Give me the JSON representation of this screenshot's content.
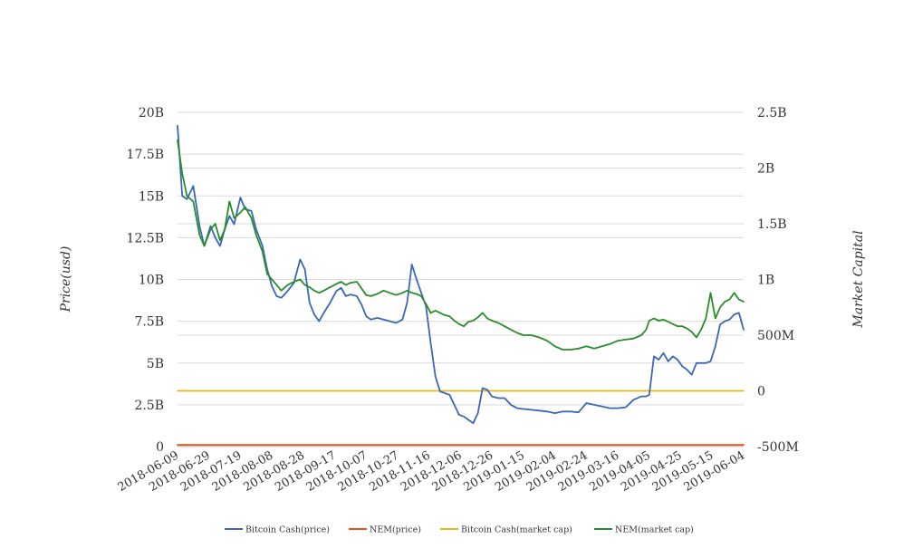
{
  "chart_data": {
    "type": "line",
    "title": "",
    "ylabel_left": "Price(usd)",
    "ylabel_right": "Market Capital",
    "ylim_left": [
      0,
      20000000000
    ],
    "ylim_right": [
      -500000000,
      2500000000
    ],
    "yticks_left": [
      "0",
      "2.5B",
      "5B",
      "7.5B",
      "10B",
      "12.5B",
      "15B",
      "17.5B",
      "20B"
    ],
    "yticks_right": [
      "-500M",
      "0",
      "500M",
      "1B",
      "1.5B",
      "2B",
      "2.5B"
    ],
    "x_range": [
      "2018-06-09",
      "2019-06-04"
    ],
    "xticks": [
      "2018-06-09",
      "2018-06-29",
      "2018-07-19",
      "2018-08-08",
      "2018-08-28",
      "2018-09-17",
      "2018-10-07",
      "2018-10-27",
      "2018-11-16",
      "2018-12-06",
      "2018-12-26",
      "2019-01-15",
      "2019-02-04",
      "2019-02-24",
      "2019-03-16",
      "2019-04-05",
      "2019-04-25",
      "2019-05-15",
      "2019-06-04"
    ],
    "grid": true,
    "legend_position": "bottom",
    "series": [
      {
        "name": "Bitcoin Cash(price)",
        "axis": "left",
        "color": "#3a67b8",
        "x": [
          "2018-06-09",
          "2018-06-12",
          "2018-06-15",
          "2018-06-19",
          "2018-06-23",
          "2018-06-26",
          "2018-06-30",
          "2018-07-03",
          "2018-07-06",
          "2018-07-09",
          "2018-07-12",
          "2018-07-15",
          "2018-07-19",
          "2018-07-22",
          "2018-07-26",
          "2018-07-29",
          "2018-08-02",
          "2018-08-05",
          "2018-08-08",
          "2018-08-11",
          "2018-08-14",
          "2018-08-18",
          "2018-08-22",
          "2018-08-26",
          "2018-08-29",
          "2018-09-01",
          "2018-09-04",
          "2018-09-07",
          "2018-09-10",
          "2018-09-14",
          "2018-09-18",
          "2018-09-21",
          "2018-09-24",
          "2018-09-27",
          "2018-10-01",
          "2018-10-04",
          "2018-10-07",
          "2018-10-10",
          "2018-10-14",
          "2018-10-18",
          "2018-10-22",
          "2018-10-26",
          "2018-10-30",
          "2018-11-02",
          "2018-11-05",
          "2018-11-08",
          "2018-11-11",
          "2018-11-14",
          "2018-11-17",
          "2018-11-20",
          "2018-11-23",
          "2018-11-26",
          "2018-11-29",
          "2018-12-02",
          "2018-12-05",
          "2018-12-08",
          "2018-12-11",
          "2018-12-14",
          "2018-12-17",
          "2018-12-20",
          "2018-12-23",
          "2018-12-26",
          "2018-12-30",
          "2019-01-03",
          "2019-01-07",
          "2019-01-11",
          "2019-01-15",
          "2019-01-20",
          "2019-01-25",
          "2019-01-30",
          "2019-02-04",
          "2019-02-09",
          "2019-02-14",
          "2019-02-19",
          "2019-02-24",
          "2019-03-01",
          "2019-03-06",
          "2019-03-11",
          "2019-03-16",
          "2019-03-21",
          "2019-03-26",
          "2019-03-31",
          "2019-04-03",
          "2019-04-05",
          "2019-04-08",
          "2019-04-11",
          "2019-04-14",
          "2019-04-17",
          "2019-04-20",
          "2019-04-23",
          "2019-04-26",
          "2019-04-29",
          "2019-05-02",
          "2019-05-05",
          "2019-05-08",
          "2019-05-11",
          "2019-05-14",
          "2019-05-17",
          "2019-05-20",
          "2019-05-23",
          "2019-05-26",
          "2019-05-29",
          "2019-06-01",
          "2019-06-04"
        ],
        "values": [
          19.2,
          15.0,
          14.8,
          15.6,
          13.2,
          12.0,
          13.2,
          12.5,
          12.0,
          13.0,
          13.8,
          13.3,
          14.9,
          14.2,
          14.1,
          13.0,
          12.0,
          10.6,
          9.6,
          9.0,
          8.9,
          9.3,
          9.8,
          11.2,
          10.6,
          8.6,
          7.9,
          7.5,
          8.0,
          8.6,
          9.3,
          9.5,
          9.0,
          9.1,
          9.0,
          8.5,
          7.8,
          7.6,
          7.7,
          7.6,
          7.5,
          7.4,
          7.6,
          8.6,
          10.9,
          10.0,
          9.2,
          8.4,
          6.2,
          4.2,
          3.3,
          3.2,
          3.1,
          2.5,
          1.9,
          1.8,
          1.6,
          1.4,
          2.0,
          3.5,
          3.4,
          3.0,
          2.9,
          2.9,
          2.5,
          2.3,
          2.25,
          2.2,
          2.15,
          2.1,
          2.0,
          2.1,
          2.1,
          2.05,
          2.6,
          2.5,
          2.4,
          2.3,
          2.3,
          2.35,
          2.8,
          3.0,
          3.0,
          3.1,
          5.4,
          5.2,
          5.6,
          5.1,
          5.4,
          5.2,
          4.8,
          4.6,
          4.3,
          5.0,
          5.0,
          5.0,
          5.1,
          6.0,
          7.3,
          7.5,
          7.6,
          7.9,
          8.0,
          7.0
        ]
      },
      {
        "name": "NEM(price)",
        "axis": "left",
        "color": "#d9541e",
        "x": [
          "2018-06-09",
          "2019-06-04"
        ],
        "values": [
          0.1,
          0.1
        ]
      },
      {
        "name": "Bitcoin Cash(market cap)",
        "axis": "right",
        "color": "#e6b619",
        "x": [
          "2018-06-09",
          "2019-06-04"
        ],
        "values": [
          0,
          0
        ]
      },
      {
        "name": "NEM(market cap)",
        "axis": "right",
        "color": "#2b8c2b",
        "x": [
          "2018-06-09",
          "2018-06-12",
          "2018-06-15",
          "2018-06-19",
          "2018-06-23",
          "2018-06-26",
          "2018-06-30",
          "2018-07-03",
          "2018-07-06",
          "2018-07-09",
          "2018-07-12",
          "2018-07-15",
          "2018-07-19",
          "2018-07-22",
          "2018-07-26",
          "2018-07-29",
          "2018-08-02",
          "2018-08-05",
          "2018-08-08",
          "2018-08-11",
          "2018-08-14",
          "2018-08-18",
          "2018-08-22",
          "2018-08-26",
          "2018-08-29",
          "2018-09-01",
          "2018-09-04",
          "2018-09-07",
          "2018-09-10",
          "2018-09-14",
          "2018-09-18",
          "2018-09-21",
          "2018-09-24",
          "2018-09-27",
          "2018-10-01",
          "2018-10-04",
          "2018-10-07",
          "2018-10-10",
          "2018-10-14",
          "2018-10-18",
          "2018-10-22",
          "2018-10-26",
          "2018-10-30",
          "2018-11-02",
          "2018-11-05",
          "2018-11-08",
          "2018-11-11",
          "2018-11-14",
          "2018-11-17",
          "2018-11-20",
          "2018-11-23",
          "2018-11-26",
          "2018-11-29",
          "2018-12-02",
          "2018-12-05",
          "2018-12-08",
          "2018-12-11",
          "2018-12-14",
          "2018-12-17",
          "2018-12-20",
          "2018-12-23",
          "2018-12-26",
          "2018-12-30",
          "2019-01-03",
          "2019-01-07",
          "2019-01-11",
          "2019-01-15",
          "2019-01-20",
          "2019-01-25",
          "2019-01-30",
          "2019-02-04",
          "2019-02-09",
          "2019-02-14",
          "2019-02-19",
          "2019-02-24",
          "2019-03-01",
          "2019-03-06",
          "2019-03-11",
          "2019-03-16",
          "2019-03-21",
          "2019-03-26",
          "2019-03-31",
          "2019-04-03",
          "2019-04-05",
          "2019-04-08",
          "2019-04-11",
          "2019-04-14",
          "2019-04-17",
          "2019-04-20",
          "2019-04-23",
          "2019-04-26",
          "2019-04-29",
          "2019-05-02",
          "2019-05-05",
          "2019-05-08",
          "2019-05-11",
          "2019-05-14",
          "2019-05-17",
          "2019-05-20",
          "2019-05-23",
          "2019-05-26",
          "2019-05-29",
          "2019-06-01",
          "2019-06-04"
        ],
        "values": [
          2.25,
          1.95,
          1.75,
          1.7,
          1.4,
          1.3,
          1.45,
          1.5,
          1.35,
          1.45,
          1.7,
          1.55,
          1.6,
          1.65,
          1.55,
          1.4,
          1.25,
          1.05,
          1.0,
          0.95,
          0.9,
          0.95,
          0.98,
          1.0,
          0.95,
          0.93,
          0.9,
          0.88,
          0.9,
          0.93,
          0.96,
          0.98,
          0.95,
          0.97,
          0.98,
          0.92,
          0.86,
          0.85,
          0.87,
          0.9,
          0.88,
          0.86,
          0.88,
          0.9,
          0.88,
          0.87,
          0.85,
          0.78,
          0.7,
          0.72,
          0.7,
          0.68,
          0.67,
          0.63,
          0.6,
          0.58,
          0.62,
          0.63,
          0.66,
          0.7,
          0.65,
          0.63,
          0.61,
          0.58,
          0.55,
          0.52,
          0.5,
          0.5,
          0.48,
          0.45,
          0.4,
          0.37,
          0.37,
          0.38,
          0.4,
          0.38,
          0.4,
          0.42,
          0.45,
          0.46,
          0.47,
          0.5,
          0.55,
          0.63,
          0.65,
          0.63,
          0.64,
          0.62,
          0.6,
          0.58,
          0.58,
          0.56,
          0.53,
          0.48,
          0.55,
          0.65,
          0.88,
          0.65,
          0.75,
          0.8,
          0.82,
          0.88,
          0.82,
          0.8
        ]
      }
    ]
  }
}
